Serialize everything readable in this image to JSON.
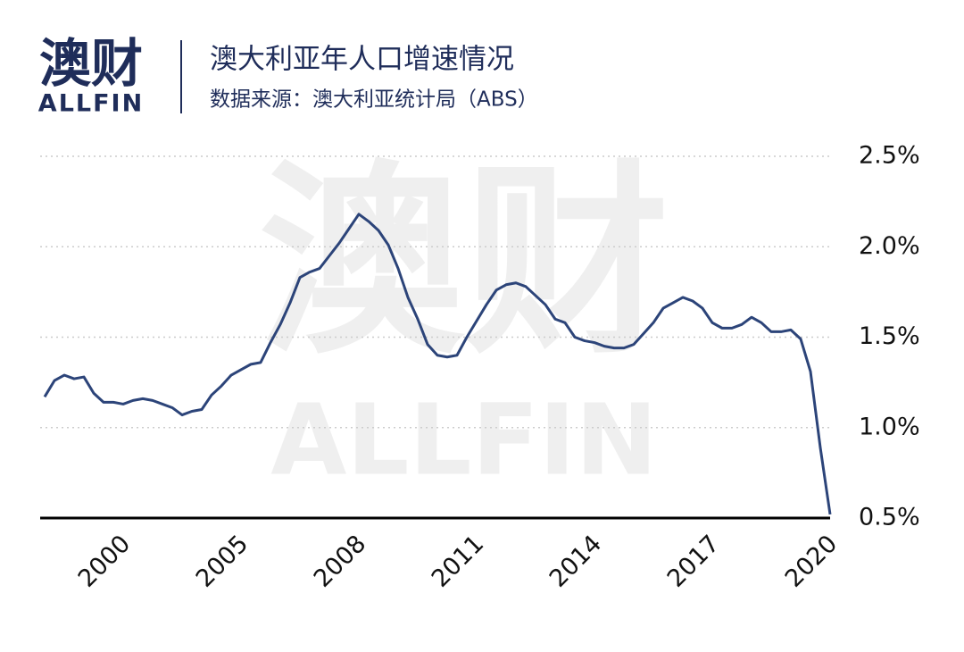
{
  "logo": {
    "name": "澳财",
    "sub": "ALLFIN"
  },
  "watermark": {
    "name": "澳财",
    "sub": "ALLFIN"
  },
  "chart_data": {
    "type": "line",
    "title": "澳大利亚年人口增速情况",
    "subtitle": "数据来源：澳大利亚统计局（ABS）",
    "categories": [
      null,
      null,
      null,
      null,
      null,
      null,
      null,
      null,
      "2000",
      null,
      null,
      null,
      null,
      null,
      null,
      null,
      null,
      null,
      null,
      null,
      "2005",
      null,
      null,
      null,
      null,
      null,
      null,
      null,
      null,
      null,
      null,
      null,
      "2008",
      null,
      null,
      null,
      null,
      null,
      null,
      null,
      null,
      null,
      null,
      null,
      "2011",
      null,
      null,
      null,
      null,
      null,
      null,
      null,
      null,
      null,
      null,
      null,
      "2014",
      null,
      null,
      null,
      null,
      null,
      null,
      null,
      null,
      null,
      null,
      null,
      "2017",
      null,
      null,
      null,
      null,
      null,
      null,
      null,
      null,
      null,
      null,
      null,
      "2020"
    ],
    "series": [
      {
        "name": null,
        "color": "#2c4479",
        "values": [
          1.17,
          1.26,
          1.29,
          1.27,
          1.28,
          1.19,
          1.14,
          1.14,
          1.13,
          1.15,
          1.16,
          1.15,
          1.13,
          1.11,
          1.07,
          1.09,
          1.1,
          1.18,
          1.23,
          1.29,
          1.32,
          1.35,
          1.36,
          1.47,
          1.57,
          1.69,
          1.83,
          1.86,
          1.88,
          1.95,
          2.02,
          2.1,
          2.18,
          2.14,
          2.09,
          2.01,
          1.88,
          1.72,
          1.6,
          1.46,
          1.4,
          1.39,
          1.4,
          1.5,
          1.59,
          1.68,
          1.76,
          1.79,
          1.8,
          1.78,
          1.73,
          1.68,
          1.6,
          1.58,
          1.5,
          1.48,
          1.47,
          1.45,
          1.44,
          1.44,
          1.46,
          1.52,
          1.58,
          1.66,
          1.69,
          1.72,
          1.7,
          1.66,
          1.58,
          1.55,
          1.55,
          1.57,
          1.61,
          1.58,
          1.53,
          1.53,
          1.54,
          1.49,
          1.31,
          0.89,
          0.52
        ]
      }
    ],
    "ylim": [
      0.5,
      2.5
    ],
    "yticks": [
      {
        "value": 0.5,
        "label": "0.5%"
      },
      {
        "value": 1.0,
        "label": "1.0%"
      },
      {
        "value": 1.5,
        "label": "1.5%"
      },
      {
        "value": 2.0,
        "label": "2.0%"
      },
      {
        "value": 2.5,
        "label": "2.5%"
      }
    ],
    "grid": true
  }
}
